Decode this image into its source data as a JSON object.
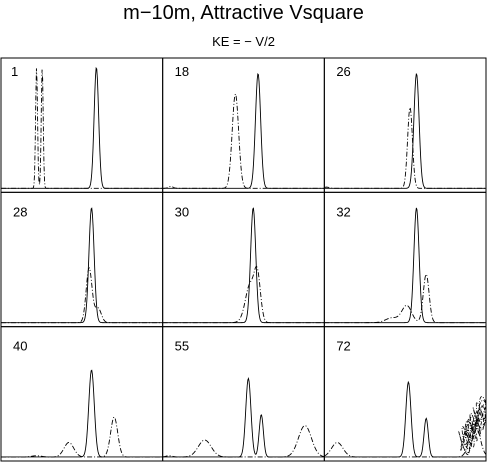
{
  "chart_data": {
    "type": "line",
    "title": "m−10m, Attractive Vsquare",
    "subtitle": "KE = − V/2",
    "grid": {
      "rows": 3,
      "cols": 3
    },
    "x_range": [
      0,
      1
    ],
    "y_range": [
      0,
      1
    ],
    "axes_ticks_shown": false,
    "series_styles": [
      {
        "style": "solid",
        "color": "#000000"
      },
      {
        "style": "dash-dot",
        "color": "#000000"
      }
    ],
    "panels": [
      {
        "label": "1",
        "solid": [
          [
            0.59,
            1.0,
            0.014
          ]
        ],
        "dashed": [
          [
            0.22,
            1.0,
            0.006
          ],
          [
            0.255,
            1.0,
            0.006
          ]
        ]
      },
      {
        "label": "18",
        "solid": [
          [
            0.59,
            0.95,
            0.016
          ]
        ],
        "dashed": [
          [
            0.45,
            0.78,
            0.02
          ],
          [
            0.05,
            0.015,
            0.015
          ]
        ]
      },
      {
        "label": "26",
        "solid": [
          [
            0.57,
            0.95,
            0.016
          ]
        ],
        "dashed": [
          [
            0.53,
            0.67,
            0.015
          ],
          [
            0.015,
            0.01,
            0.015
          ]
        ]
      },
      {
        "label": "28",
        "solid": [
          [
            0.56,
            0.95,
            0.016
          ]
        ],
        "dashed": [
          [
            0.545,
            0.45,
            0.018
          ],
          [
            0.6,
            0.12,
            0.02
          ]
        ]
      },
      {
        "label": "30",
        "solid": [
          [
            0.56,
            0.95,
            0.016
          ]
        ],
        "dashed": [
          [
            0.585,
            0.4,
            0.02
          ],
          [
            0.54,
            0.25,
            0.025
          ],
          [
            0.52,
            0.06,
            0.03
          ]
        ]
      },
      {
        "label": "32",
        "solid": [
          [
            0.57,
            0.95,
            0.016
          ]
        ],
        "dashed": [
          [
            0.63,
            0.4,
            0.018
          ],
          [
            0.51,
            0.14,
            0.03
          ],
          [
            0.42,
            0.04,
            0.04
          ]
        ]
      },
      {
        "label": "40",
        "solid": [
          [
            0.56,
            0.72,
            0.017
          ]
        ],
        "dashed": [
          [
            0.7,
            0.33,
            0.022
          ],
          [
            0.42,
            0.12,
            0.03
          ],
          [
            0.22,
            0.01,
            0.03
          ]
        ]
      },
      {
        "label": "55",
        "solid": [
          [
            0.53,
            0.65,
            0.016
          ],
          [
            0.61,
            0.35,
            0.013
          ]
        ],
        "dashed": [
          [
            0.88,
            0.26,
            0.04
          ],
          [
            0.26,
            0.14,
            0.04
          ],
          [
            0.04,
            0.01,
            0.02
          ]
        ]
      },
      {
        "label": "72",
        "solid": [
          [
            0.52,
            0.62,
            0.016
          ],
          [
            0.63,
            0.32,
            0.013
          ]
        ],
        "dashed": [
          [
            0.08,
            0.12,
            0.035
          ],
          [
            0.93,
            0.3,
            0.03
          ]
        ],
        "tangle": true
      }
    ]
  }
}
